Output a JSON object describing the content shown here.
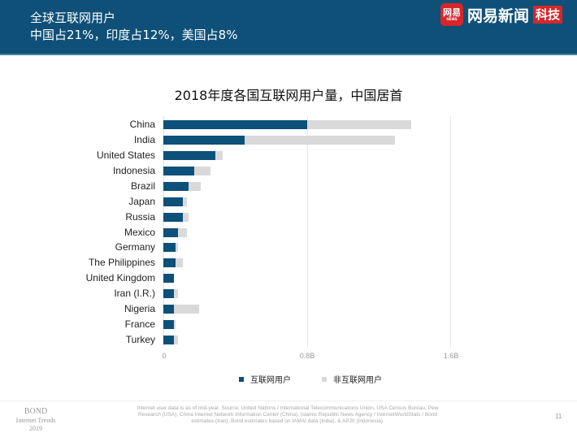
{
  "header": {
    "title_line1": "全球互联网用户",
    "title_line2": "中国占21%，印度占12%，美国占8%",
    "logo_badge": "网易",
    "logo_badge_sub": "NEWS",
    "logo_text": "网易新闻",
    "logo_tag": "科技"
  },
  "colors": {
    "header_bg": "#0f5078",
    "internet_users": "#0d5079",
    "non_internet_users": "#d9d9d9",
    "logo_red": "#d6262b"
  },
  "chart_data": {
    "type": "bar",
    "orientation": "horizontal",
    "stacked": true,
    "title": "2018年度各国互联网用户量，中国居首",
    "xlabel": "",
    "ylabel": "",
    "xlim": [
      0,
      1.6
    ],
    "x_unit": "B",
    "x_ticks": [
      "0",
      "0.8B",
      "1.6B"
    ],
    "grid": true,
    "legend_position": "bottom",
    "categories": [
      "China",
      "India",
      "United States",
      "Indonesia",
      "Brazil",
      "Japan",
      "Russia",
      "Mexico",
      "Germany",
      "The Philippines",
      "United Kingdom",
      "Iran (I.R.)",
      "Nigeria",
      "France",
      "Turkey"
    ],
    "series": [
      {
        "name": "互联网用户",
        "values": [
          0.8,
          0.45,
          0.29,
          0.17,
          0.14,
          0.11,
          0.11,
          0.08,
          0.07,
          0.07,
          0.06,
          0.06,
          0.06,
          0.06,
          0.06
        ]
      },
      {
        "name": "非互联网用户",
        "values": [
          0.58,
          0.84,
          0.04,
          0.09,
          0.07,
          0.02,
          0.03,
          0.05,
          0.01,
          0.04,
          0.0,
          0.02,
          0.14,
          0.01,
          0.02
        ]
      }
    ]
  },
  "legend": {
    "internet": "互联网用户",
    "non_internet": "非互联网用户"
  },
  "footer": {
    "bond_line1": "BOND",
    "bond_line2": "Internet Trends",
    "bond_line3": "2019",
    "source": "Internet user data is as of mid-year.  Source: United Nations / International Telecommunications Union, USA Census Bureau, Pew Research (USA), China Internet Network Information Center (China), Islamic Republic News Agency / InternetWorldStats / Bond estimates (Iran). Bond estimates based on IAMAI data (India), & APJII (Indonesia).",
    "page_number": "11"
  }
}
